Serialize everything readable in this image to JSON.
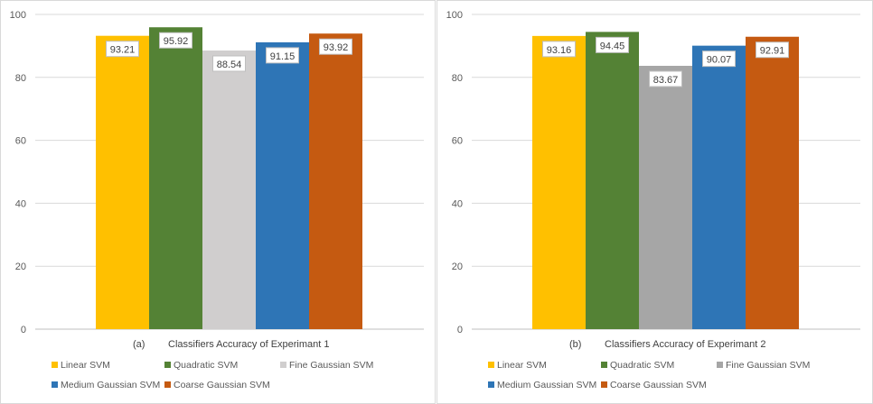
{
  "chart_data": [
    {
      "type": "bar",
      "panel_label": "(a)",
      "caption": "Classifiers Accuracy of Experimant 1",
      "categories": [
        "Linear SVM",
        "Quadratic SVM",
        "Fine Gaussian SVM",
        "Medium Gaussian SVM",
        "Coarse Gaussian SVM"
      ],
      "values": [
        93.21,
        95.92,
        88.54,
        91.15,
        93.92
      ],
      "value_labels": [
        "93.21",
        "95.92",
        "88.54",
        "91.15",
        "93.92"
      ],
      "colors": [
        "#FFC000",
        "#548235",
        "#D0CECE",
        "#2E75B6",
        "#C55A11"
      ],
      "ylim": [
        0,
        100
      ],
      "yticks": [
        0,
        20,
        40,
        60,
        80,
        100
      ],
      "grid": true,
      "legend_position": "bottom"
    },
    {
      "type": "bar",
      "panel_label": "(b)",
      "caption": "Classifiers Accuracy of Experimant 2",
      "categories": [
        "Linear SVM",
        "Quadratic SVM",
        "Fine Gaussian SVM",
        "Medium Gaussian SVM",
        "Coarse Gaussian SVM"
      ],
      "values": [
        93.16,
        94.45,
        83.67,
        90.07,
        92.91
      ],
      "value_labels": [
        "93.16",
        "94.45",
        "83.67",
        "90.07",
        "92.91"
      ],
      "colors": [
        "#FFC000",
        "#548235",
        "#A6A6A6",
        "#2E75B6",
        "#C55A11"
      ],
      "ylim": [
        0,
        100
      ],
      "yticks": [
        0,
        20,
        40,
        60,
        80,
        100
      ],
      "grid": true,
      "legend_position": "bottom"
    }
  ]
}
